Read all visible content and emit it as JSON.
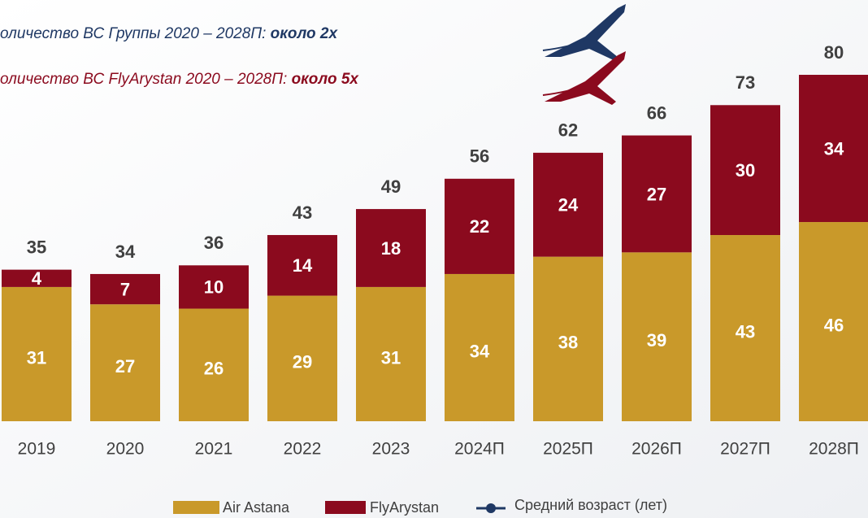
{
  "chart_data": {
    "type": "stacked_bar",
    "annotations": [
      {
        "text": "оличество ВС Группы 2020 – 2028П: ",
        "emphasis": "около 2х",
        "color": "#1f3864"
      },
      {
        "text": "оличество ВС FlyArystan 2020 – 2028П: ",
        "emphasis": "около 5х",
        "color": "#8b0a1e"
      }
    ],
    "categories": [
      "2019",
      "2020",
      "2021",
      "2022",
      "2023",
      "2024П",
      "2025П",
      "2026П",
      "2027П",
      "2028П"
    ],
    "series": [
      {
        "name": "Air Astana",
        "color": "#c9992a",
        "values": [
          31,
          27,
          26,
          29,
          31,
          34,
          38,
          39,
          43,
          46
        ]
      },
      {
        "name": "FlyArystan",
        "color": "#8b0a1e",
        "values": [
          4,
          7,
          10,
          14,
          18,
          22,
          24,
          27,
          30,
          34
        ]
      }
    ],
    "totals": [
      35,
      34,
      36,
      43,
      49,
      56,
      62,
      66,
      73,
      80
    ],
    "line_legend": {
      "name": "Средний возраст (лет)",
      "color": "#1f3864"
    },
    "ylim": [
      0,
      80
    ]
  }
}
